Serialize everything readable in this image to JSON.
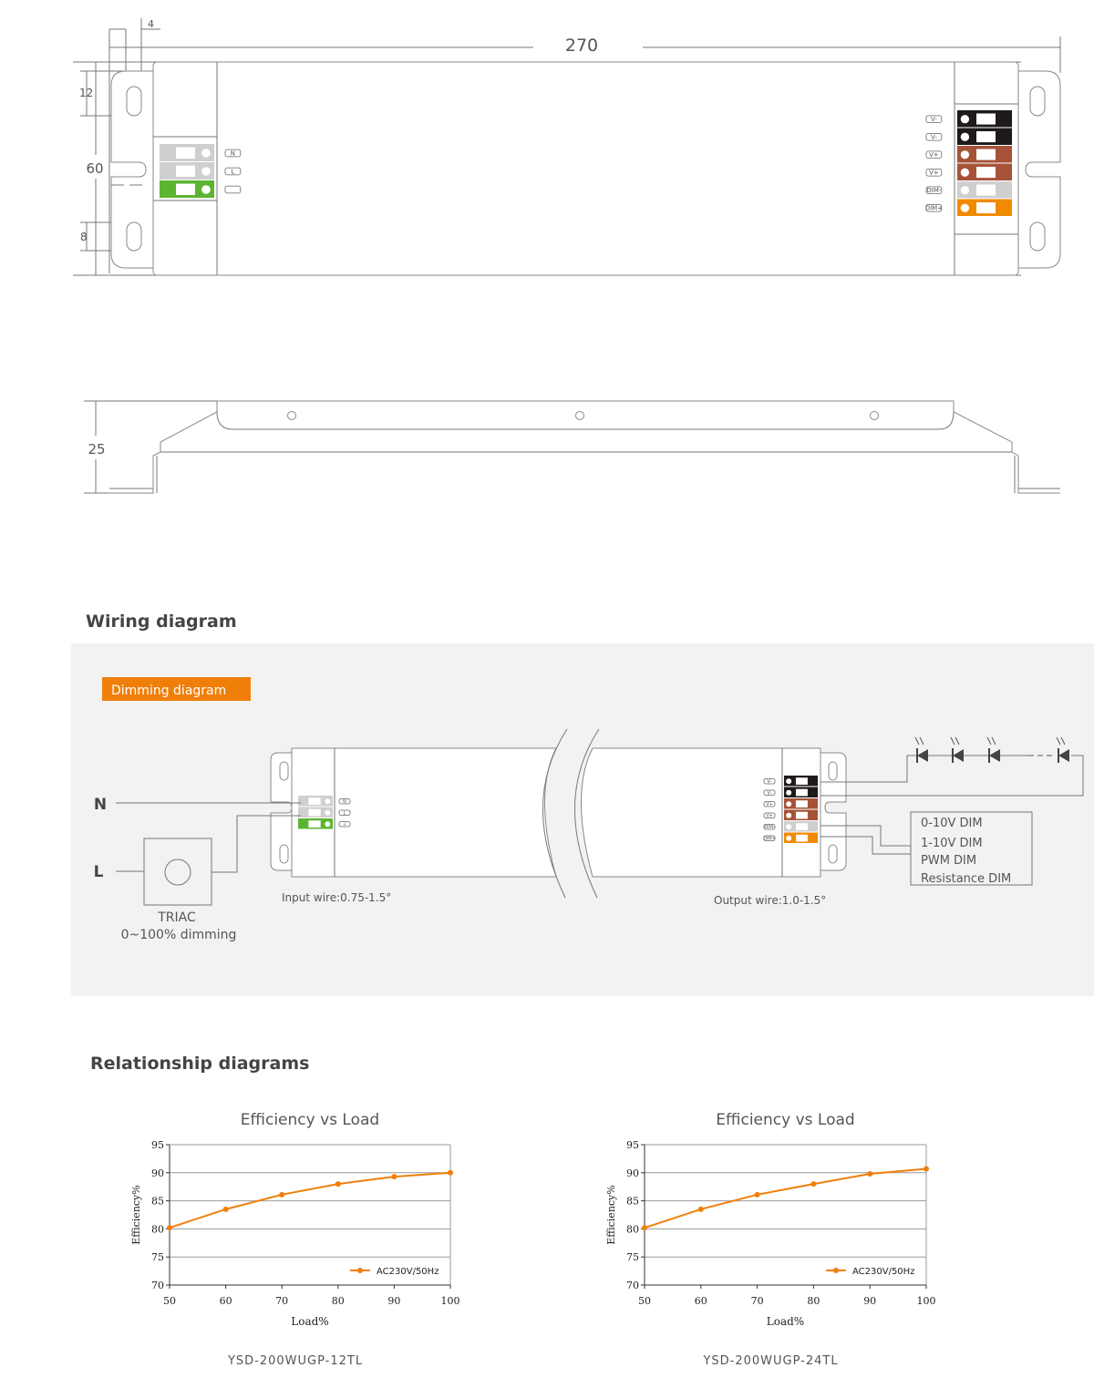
{
  "top_view": {
    "dimensions": {
      "length": "270",
      "height": "60",
      "hole_offset": "4",
      "hole_top": "12",
      "hole_bottom": "8"
    },
    "input_terminals": [
      "N",
      "L",
      ""
    ],
    "output_terminals": [
      "V-",
      "V-",
      "V+",
      "V+",
      "DIM-",
      "DIM+"
    ]
  },
  "side_view": {
    "dimensions": {
      "thickness": "25"
    }
  },
  "wiring": {
    "heading": "Wiring diagram",
    "badge": "Dimming diagram",
    "n_label": "N",
    "l_label": "L",
    "triac_label": "TRIAC",
    "triac_range": "0~100% dimming",
    "input_wire": "Input wire:0.75-1.5°",
    "output_wire": "Output wire:1.0-1.5°",
    "dim_modes": [
      "0-10V DIM",
      "1-10V DIM",
      "PWM DIM",
      "Resistance DIM"
    ],
    "input_terminals": [
      "N",
      "L",
      "⏚"
    ],
    "output_terminals": [
      "V-",
      "V-",
      "V+",
      "V+",
      "DIM-",
      "DIM+"
    ]
  },
  "relationship": {
    "heading": "Relationship diagrams"
  },
  "colors": {
    "accent": "#f07f0a",
    "terminal_ground": "#5cb531",
    "terminal_neg": "#1e1a1a",
    "terminal_pos": "#a65238",
    "terminal_dim_minus": "#cfcfcf",
    "terminal_dim_plus": "#f08a00",
    "panel_bg": "#f2f2f2"
  },
  "chart_data": [
    {
      "type": "line",
      "title": "Efficiency vs Load",
      "caption": "YSD-200WUGP-12TL",
      "xlabel": "Load%",
      "ylabel": "Efficiency%",
      "x": [
        50,
        60,
        70,
        80,
        90,
        100
      ],
      "xticks": [
        "50",
        "60",
        "70",
        "80",
        "90",
        "100"
      ],
      "yticks": [
        "70",
        "75",
        "80",
        "85",
        "90",
        "95"
      ],
      "xlim": [
        50,
        100
      ],
      "ylim": [
        70,
        95
      ],
      "grid": true,
      "legend": "bottom-right",
      "series": [
        {
          "name": "AC230V/50Hz",
          "color": "#f07f0a",
          "values": [
            80.2,
            83.5,
            86.1,
            88.0,
            89.3,
            90.0
          ]
        }
      ]
    },
    {
      "type": "line",
      "title": "Efficiency vs Load",
      "caption": "YSD-200WUGP-24TL",
      "xlabel": "Load%",
      "ylabel": "Efficiency%",
      "x": [
        50,
        60,
        70,
        80,
        90,
        100
      ],
      "xticks": [
        "50",
        "60",
        "70",
        "80",
        "90",
        "100"
      ],
      "yticks": [
        "70",
        "75",
        "80",
        "85",
        "90",
        "95"
      ],
      "xlim": [
        50,
        100
      ],
      "ylim": [
        70,
        95
      ],
      "grid": true,
      "legend": "bottom-right",
      "series": [
        {
          "name": "AC230V/50Hz",
          "color": "#f07f0a",
          "values": [
            80.2,
            83.5,
            86.1,
            88.0,
            89.8,
            90.7
          ]
        }
      ]
    }
  ]
}
